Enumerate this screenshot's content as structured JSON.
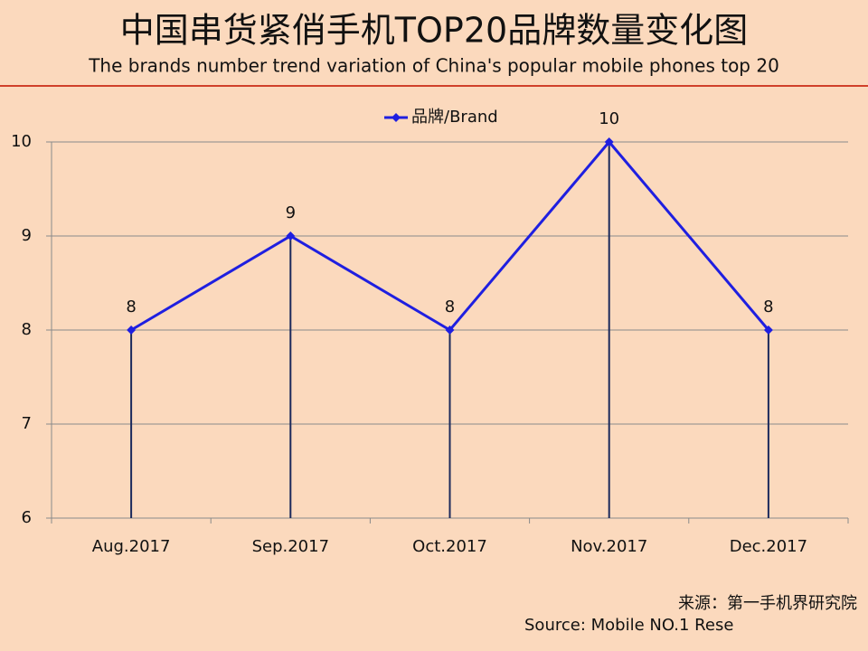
{
  "chart_data": {
    "type": "line",
    "title": "中国串货紧俏手机TOP20品牌数量变化图",
    "subtitle": "The brands number trend variation of China's popular mobile phones top 20",
    "categories": [
      "Aug.2017",
      "Sep.2017",
      "Oct.2017",
      "Nov.2017",
      "Dec.2017"
    ],
    "series": [
      {
        "name": "品牌/Brand",
        "color": "#1f1fe0",
        "values": [
          8,
          9,
          8,
          10,
          8
        ]
      }
    ],
    "ylim": [
      6,
      10
    ],
    "yticks": [
      6,
      7,
      8,
      9,
      10
    ],
    "grid": true,
    "legend": "top",
    "source_cn": "来源：第一手机界研究院",
    "source_en": "Source: Mobile NO.1 Rese"
  }
}
